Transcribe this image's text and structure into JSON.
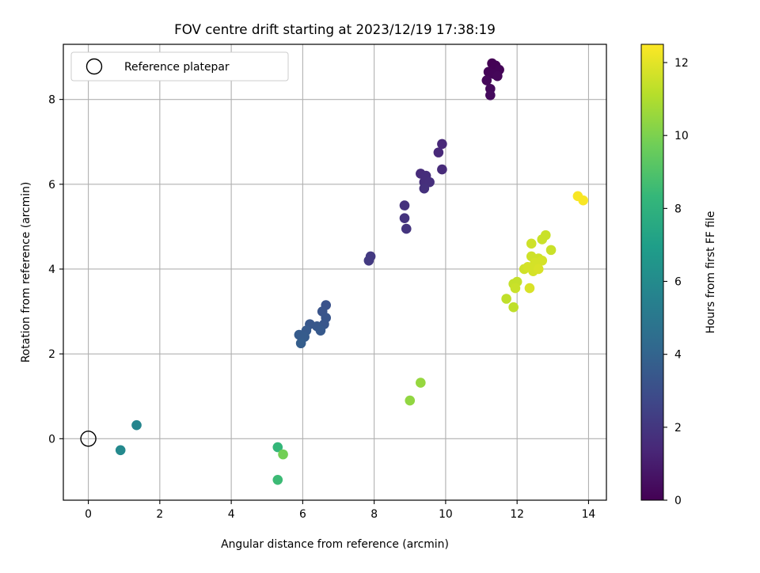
{
  "chart_data": {
    "type": "scatter",
    "title": "FOV centre drift starting at 2023/12/19 17:38:19",
    "xlabel": "Angular distance from reference (arcmin)",
    "ylabel": "Rotation from reference (arcmin)",
    "xlim": [
      -0.7,
      14.5
    ],
    "ylim": [
      -1.45,
      9.3
    ],
    "xticks": [
      0,
      2,
      4,
      6,
      8,
      10,
      12,
      14
    ],
    "yticks": [
      0,
      2,
      4,
      6,
      8
    ],
    "grid": true,
    "legend": {
      "placement": "top-left",
      "entries": [
        {
          "label": "Reference platepar",
          "marker": "open-circle"
        }
      ]
    },
    "reference_point": {
      "x": 0,
      "y": 0
    },
    "colorbar": {
      "label": "Hours from first FF file",
      "min": 0,
      "max": 12.5,
      "ticks": [
        0,
        2,
        4,
        6,
        8,
        10,
        12
      ],
      "colormap": "viridis"
    },
    "colormap_stops": [
      "#440154",
      "#482878",
      "#3e4989",
      "#31688e",
      "#26828e",
      "#1f9e89",
      "#35b779",
      "#6ece58",
      "#b5de2b",
      "#fde725"
    ],
    "points": [
      {
        "x": 11.3,
        "y": 8.85,
        "h": 0.0
      },
      {
        "x": 11.4,
        "y": 8.8,
        "h": 0.05
      },
      {
        "x": 11.5,
        "y": 8.7,
        "h": 0.1
      },
      {
        "x": 11.2,
        "y": 8.65,
        "h": 0.12
      },
      {
        "x": 11.35,
        "y": 8.6,
        "h": 0.15
      },
      {
        "x": 11.45,
        "y": 8.55,
        "h": 0.2
      },
      {
        "x": 11.15,
        "y": 8.45,
        "h": 0.25
      },
      {
        "x": 11.25,
        "y": 8.25,
        "h": 0.3
      },
      {
        "x": 11.25,
        "y": 8.1,
        "h": 0.35
      },
      {
        "x": 9.9,
        "y": 6.95,
        "h": 1.4
      },
      {
        "x": 9.8,
        "y": 6.75,
        "h": 1.45
      },
      {
        "x": 9.9,
        "y": 6.35,
        "h": 1.5
      },
      {
        "x": 9.3,
        "y": 6.25,
        "h": 1.55
      },
      {
        "x": 9.45,
        "y": 6.2,
        "h": 1.6
      },
      {
        "x": 9.4,
        "y": 6.05,
        "h": 1.65
      },
      {
        "x": 9.55,
        "y": 6.05,
        "h": 1.7
      },
      {
        "x": 9.4,
        "y": 5.9,
        "h": 1.75
      },
      {
        "x": 8.85,
        "y": 5.5,
        "h": 1.8
      },
      {
        "x": 8.85,
        "y": 5.2,
        "h": 1.85
      },
      {
        "x": 8.9,
        "y": 4.95,
        "h": 1.9
      },
      {
        "x": 7.9,
        "y": 4.3,
        "h": 2.1
      },
      {
        "x": 7.85,
        "y": 4.2,
        "h": 2.15
      },
      {
        "x": 6.65,
        "y": 3.15,
        "h": 3.2
      },
      {
        "x": 6.55,
        "y": 3.0,
        "h": 3.25
      },
      {
        "x": 6.65,
        "y": 2.85,
        "h": 3.3
      },
      {
        "x": 6.6,
        "y": 2.7,
        "h": 3.35
      },
      {
        "x": 6.2,
        "y": 2.7,
        "h": 3.4
      },
      {
        "x": 6.4,
        "y": 2.65,
        "h": 3.45
      },
      {
        "x": 6.5,
        "y": 2.55,
        "h": 3.5
      },
      {
        "x": 6.1,
        "y": 2.55,
        "h": 3.55
      },
      {
        "x": 5.9,
        "y": 2.45,
        "h": 3.6
      },
      {
        "x": 6.05,
        "y": 2.4,
        "h": 3.65
      },
      {
        "x": 5.95,
        "y": 2.25,
        "h": 3.7
      },
      {
        "x": 1.35,
        "y": 0.32,
        "h": 5.7
      },
      {
        "x": 0.9,
        "y": -0.27,
        "h": 5.9
      },
      {
        "x": 5.3,
        "y": -0.2,
        "h": 8.3
      },
      {
        "x": 5.3,
        "y": -0.97,
        "h": 8.5
      },
      {
        "x": 5.45,
        "y": -0.37,
        "h": 9.8
      },
      {
        "x": 9.0,
        "y": 0.9,
        "h": 10.4
      },
      {
        "x": 9.3,
        "y": 1.32,
        "h": 10.5
      },
      {
        "x": 12.8,
        "y": 4.8,
        "h": 11.5
      },
      {
        "x": 12.7,
        "y": 4.7,
        "h": 11.5
      },
      {
        "x": 12.4,
        "y": 4.6,
        "h": 11.6
      },
      {
        "x": 12.95,
        "y": 4.45,
        "h": 11.5
      },
      {
        "x": 12.4,
        "y": 4.3,
        "h": 11.6
      },
      {
        "x": 12.6,
        "y": 4.25,
        "h": 11.6
      },
      {
        "x": 12.7,
        "y": 4.2,
        "h": 11.7
      },
      {
        "x": 12.5,
        "y": 4.15,
        "h": 11.7
      },
      {
        "x": 12.2,
        "y": 4.0,
        "h": 11.6
      },
      {
        "x": 12.3,
        "y": 4.05,
        "h": 11.7
      },
      {
        "x": 12.45,
        "y": 3.95,
        "h": 11.7
      },
      {
        "x": 12.6,
        "y": 4.0,
        "h": 11.8
      },
      {
        "x": 11.9,
        "y": 3.65,
        "h": 11.4
      },
      {
        "x": 12.0,
        "y": 3.7,
        "h": 11.4
      },
      {
        "x": 11.95,
        "y": 3.55,
        "h": 11.5
      },
      {
        "x": 12.35,
        "y": 3.55,
        "h": 11.8
      },
      {
        "x": 11.7,
        "y": 3.3,
        "h": 11.3
      },
      {
        "x": 11.9,
        "y": 3.1,
        "h": 11.3
      },
      {
        "x": 13.7,
        "y": 5.72,
        "h": 12.4
      },
      {
        "x": 13.85,
        "y": 5.62,
        "h": 12.4
      }
    ]
  }
}
